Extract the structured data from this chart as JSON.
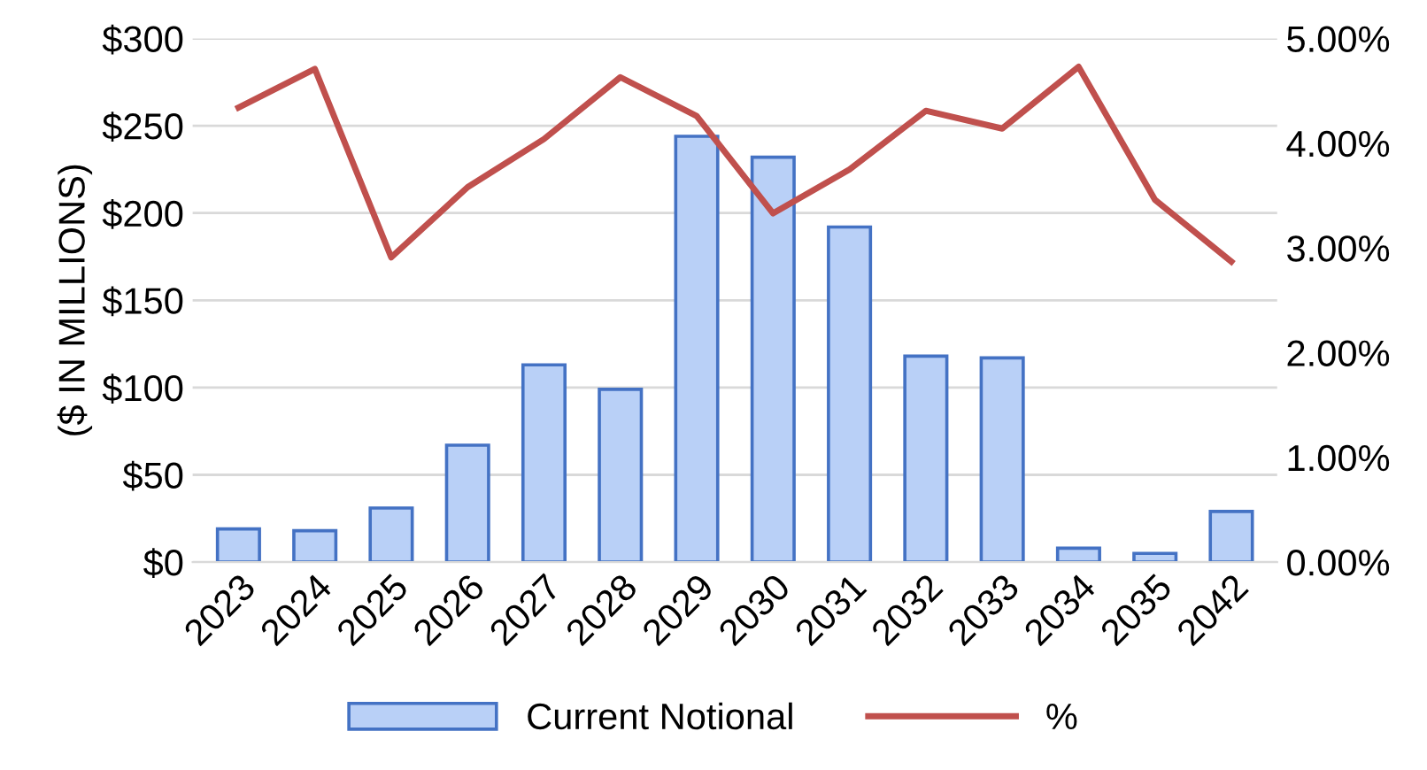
{
  "chart_data": {
    "type": "bar",
    "ylabel": "($ IN MILLIONS)",
    "categories": [
      "2023",
      "2024",
      "2025",
      "2026",
      "2027",
      "2028",
      "2029",
      "2030",
      "2031",
      "2032",
      "2033",
      "2034",
      "2035",
      "2042"
    ],
    "series": [
      {
        "name": "Current Notional",
        "color": "#b9d0f7",
        "values": [
          19,
          18,
          31,
          67,
          113,
          99,
          244,
          232,
          192,
          118,
          117,
          8,
          5,
          29
        ]
      },
      {
        "name": "%",
        "type": "line",
        "color": "#c0504d",
        "axis": "y2",
        "values": [
          4.34,
          4.71,
          2.91,
          3.58,
          4.04,
          4.63,
          4.26,
          3.33,
          3.75,
          4.31,
          4.14,
          4.73,
          3.46,
          2.87
        ]
      }
    ],
    "ylim": [
      0,
      300
    ],
    "yticks": [
      {
        "value": 0,
        "label": "$0"
      },
      {
        "value": 50,
        "label": "$50"
      },
      {
        "value": 100,
        "label": "$100"
      },
      {
        "value": 150,
        "label": "$150"
      },
      {
        "value": 200,
        "label": "$200"
      },
      {
        "value": 250,
        "label": "$250"
      },
      {
        "value": 300,
        "label": "$300"
      }
    ],
    "y2lim": [
      0,
      5
    ],
    "y2ticks": [
      {
        "value": 0,
        "label": "0.00%"
      },
      {
        "value": 1,
        "label": "1.00%"
      },
      {
        "value": 2,
        "label": "2.00%"
      },
      {
        "value": 3,
        "label": "3.00%"
      },
      {
        "value": 4,
        "label": "4.00%"
      },
      {
        "value": 5,
        "label": "5.00%"
      }
    ],
    "grid": "y",
    "legend": "bottom",
    "marker": "none",
    "line_style": "solid"
  }
}
